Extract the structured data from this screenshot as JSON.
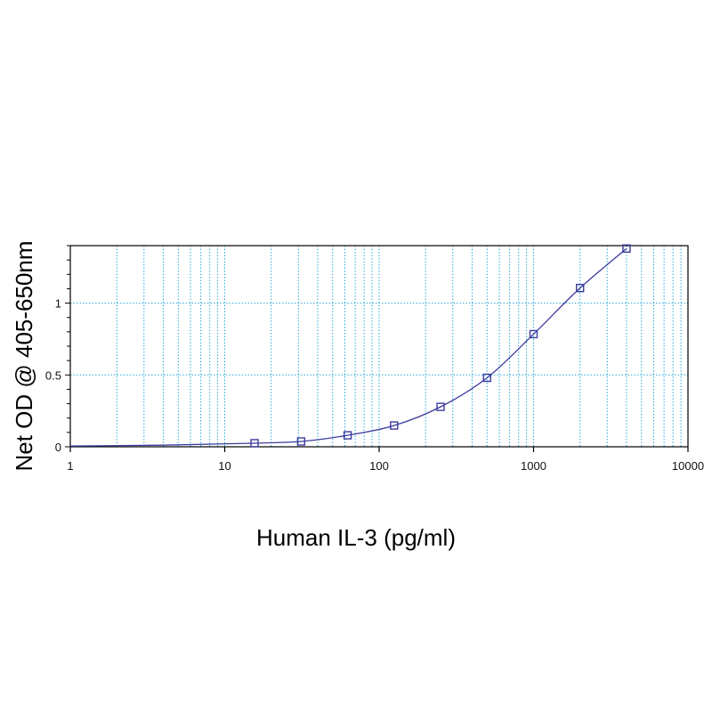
{
  "chart_data": {
    "type": "line",
    "title": "",
    "xlabel": "Human IL-3 (pg/ml)",
    "ylabel": "Net OD @ 405-650nm",
    "xscale": "log",
    "xlim": [
      1,
      10000
    ],
    "ylim": [
      0,
      1.4
    ],
    "xticks": [
      1,
      10,
      100,
      1000,
      10000
    ],
    "xtick_labels": [
      "1",
      "10",
      "100",
      "1000",
      "10000"
    ],
    "yticks": [
      0,
      0.5,
      1
    ],
    "ytick_labels": [
      "0",
      "0.5",
      "1"
    ],
    "grid": true,
    "legend": "none",
    "series": [
      {
        "x": [
          15.6,
          31.25,
          62.5,
          125,
          250,
          500,
          1000,
          2000,
          4000
        ],
        "y": [
          0.025,
          0.037,
          0.08,
          0.148,
          0.278,
          0.48,
          0.784,
          1.105,
          1.38
        ],
        "marker": "square"
      }
    ],
    "colors": {
      "line": "#3b3b9e",
      "grid": "#29a9dc",
      "axis": "#000000"
    }
  }
}
